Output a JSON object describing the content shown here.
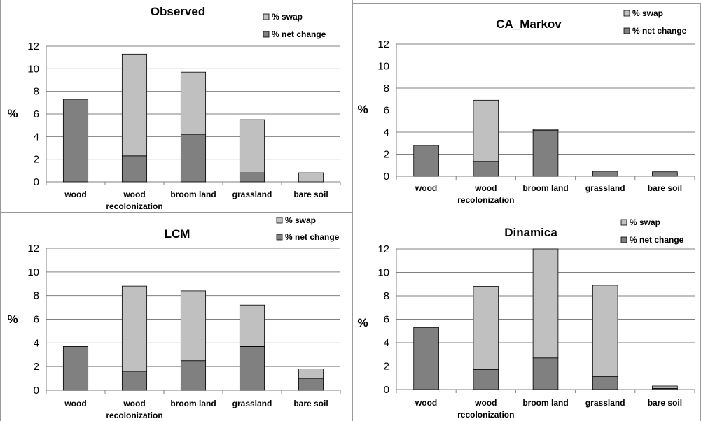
{
  "colors": {
    "swap": "#c0c0c0",
    "net_change": "#808080",
    "grid": "#808080",
    "axis": "#808080"
  },
  "chart_data": [
    {
      "type": "bar",
      "stacked": true,
      "title": "Observed",
      "ylabel": "%",
      "ylim": [
        0,
        12
      ],
      "yticks": [
        "0",
        "2",
        "4",
        "6",
        "8",
        "10",
        "12"
      ],
      "categories": [
        [
          "wood"
        ],
        [
          "wood",
          "recolonization"
        ],
        [
          "broom land"
        ],
        [
          "grassland"
        ],
        [
          "bare soil"
        ]
      ],
      "series": [
        {
          "name": "% net change",
          "values": [
            7.3,
            2.3,
            4.2,
            0.8,
            0.0
          ]
        },
        {
          "name": "% swap",
          "values": [
            0.0,
            9.0,
            5.5,
            4.7,
            0.8
          ]
        }
      ],
      "legend": "top-right",
      "grid": true
    },
    {
      "type": "bar",
      "stacked": true,
      "title": "CA_Markov",
      "ylabel": "%",
      "ylim": [
        0,
        12
      ],
      "yticks": [
        "0",
        "2",
        "4",
        "6",
        "8",
        "10",
        "12"
      ],
      "categories": [
        [
          "wood"
        ],
        [
          "wood",
          "recolonization"
        ],
        [
          "broom land"
        ],
        [
          "grassland"
        ],
        [
          "bare soil"
        ]
      ],
      "series": [
        {
          "name": "% net change",
          "values": [
            2.8,
            1.35,
            4.15,
            0.45,
            0.4
          ]
        },
        {
          "name": "% swap",
          "values": [
            0.0,
            5.55,
            0.1,
            0.0,
            0.0
          ]
        }
      ],
      "legend": "top-right",
      "grid": true
    },
    {
      "type": "bar",
      "stacked": true,
      "title": "LCM",
      "ylabel": "%",
      "ylim": [
        0,
        12
      ],
      "yticks": [
        "0",
        "2",
        "4",
        "6",
        "8",
        "10",
        "12"
      ],
      "categories": [
        [
          "wood"
        ],
        [
          "wood",
          "recolonization"
        ],
        [
          "broom land"
        ],
        [
          "grassland"
        ],
        [
          "bare soil"
        ]
      ],
      "series": [
        {
          "name": "% net change",
          "values": [
            3.7,
            1.6,
            2.5,
            3.7,
            1.0
          ]
        },
        {
          "name": "% swap",
          "values": [
            0.0,
            7.2,
            5.9,
            3.5,
            0.8
          ]
        }
      ],
      "legend": "top-right",
      "grid": true
    },
    {
      "type": "bar",
      "stacked": true,
      "title": "Dinamica",
      "ylabel": "%",
      "ylim": [
        0,
        12
      ],
      "yticks": [
        "0",
        "2",
        "4",
        "6",
        "8",
        "10",
        "12"
      ],
      "categories": [
        [
          "wood"
        ],
        [
          "wood",
          "recolonization"
        ],
        [
          "broom land"
        ],
        [
          "grassland"
        ],
        [
          "bare soil"
        ]
      ],
      "series": [
        {
          "name": "% net change",
          "values": [
            5.3,
            1.7,
            2.7,
            1.1,
            0.1
          ]
        },
        {
          "name": "% swap",
          "values": [
            0.0,
            7.1,
            9.3,
            7.8,
            0.2
          ]
        }
      ],
      "legend": "top-right",
      "grid": true
    }
  ]
}
